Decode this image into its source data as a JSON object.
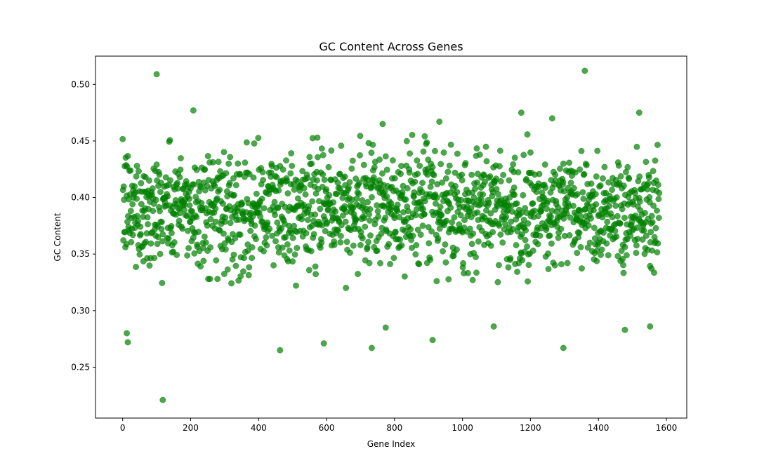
{
  "chart_data": {
    "type": "scatter",
    "title": "GC Content Across Genes",
    "xlabel": "Gene Index",
    "ylabel": "GC Content",
    "xlim": [
      -80,
      1660
    ],
    "ylim": [
      0.205,
      0.525
    ],
    "x_ticks": [
      0,
      200,
      400,
      600,
      800,
      1000,
      1200,
      1400,
      1600
    ],
    "y_ticks": [
      0.25,
      0.3,
      0.35,
      0.4,
      0.45,
      0.5
    ],
    "x_tick_labels": [
      "0",
      "200",
      "400",
      "600",
      "800",
      "1000",
      "1200",
      "1400",
      "1600"
    ],
    "y_tick_labels": [
      "0.25",
      "0.30",
      "0.35",
      "0.40",
      "0.45",
      "0.50"
    ],
    "grid": false,
    "marker_color": "#008000",
    "marker_alpha": 0.7,
    "n_points": 1580,
    "mean": 0.39,
    "std": 0.03,
    "notable_points": [
      {
        "x": 100,
        "y": 0.509
      },
      {
        "x": 118,
        "y": 0.221
      },
      {
        "x": 1360,
        "y": 0.512
      },
      {
        "x": 463,
        "y": 0.265
      },
      {
        "x": 733,
        "y": 0.267
      },
      {
        "x": 1297,
        "y": 0.267
      },
      {
        "x": 592,
        "y": 0.271
      },
      {
        "x": 912,
        "y": 0.274
      },
      {
        "x": 15,
        "y": 0.272
      },
      {
        "x": 12,
        "y": 0.28
      },
      {
        "x": 208,
        "y": 0.477
      },
      {
        "x": 1173,
        "y": 0.475
      },
      {
        "x": 1520,
        "y": 0.475
      },
      {
        "x": 1264,
        "y": 0.47
      },
      {
        "x": 932,
        "y": 0.467
      },
      {
        "x": 765,
        "y": 0.465
      },
      {
        "x": 1478,
        "y": 0.283
      },
      {
        "x": 1552,
        "y": 0.286
      },
      {
        "x": 1092,
        "y": 0.286
      },
      {
        "x": 774,
        "y": 0.285
      }
    ]
  }
}
